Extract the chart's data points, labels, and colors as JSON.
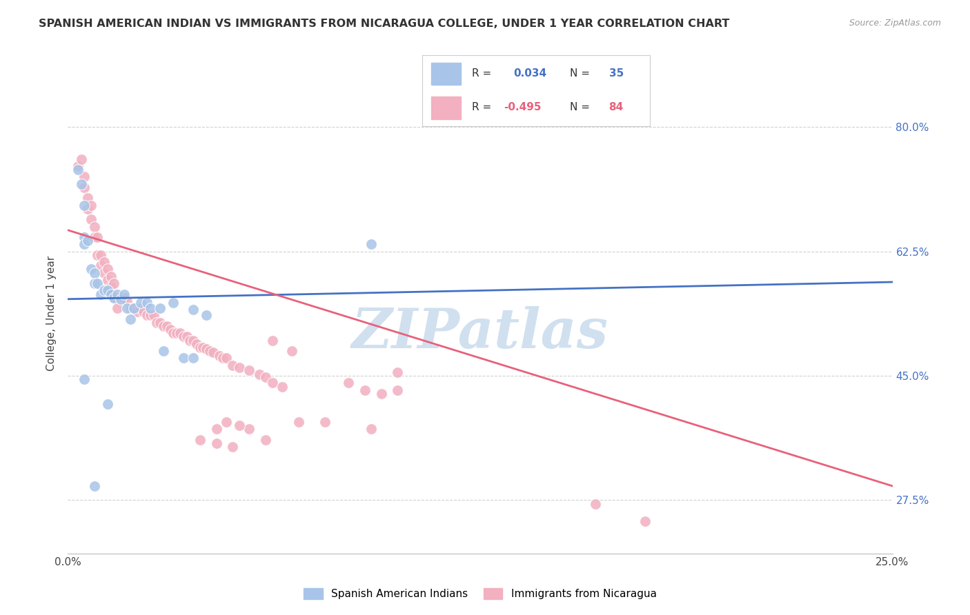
{
  "title": "SPANISH AMERICAN INDIAN VS IMMIGRANTS FROM NICARAGUA COLLEGE, UNDER 1 YEAR CORRELATION CHART",
  "source": "Source: ZipAtlas.com",
  "ylabel": "College, Under 1 year",
  "ytick_labels": [
    "27.5%",
    "45.0%",
    "62.5%",
    "80.0%"
  ],
  "ytick_values": [
    0.275,
    0.45,
    0.625,
    0.8
  ],
  "xlim": [
    0.0,
    0.25
  ],
  "ylim": [
    0.2,
    0.875
  ],
  "color_blue": "#a8c4e8",
  "color_pink": "#f2b0c0",
  "line_blue": "#4472c4",
  "line_pink": "#e8607a",
  "watermark_color": "#d0e0ef",
  "background_color": "#ffffff",
  "grid_color": "#cccccc",
  "blue_line_x": [
    0.0,
    0.25
  ],
  "blue_line_y": [
    0.558,
    0.582
  ],
  "pink_line_x": [
    0.0,
    0.25
  ],
  "pink_line_y": [
    0.655,
    0.295
  ],
  "blue_points": [
    [
      0.003,
      0.74
    ],
    [
      0.004,
      0.72
    ],
    [
      0.005,
      0.69
    ],
    [
      0.005,
      0.645
    ],
    [
      0.005,
      0.635
    ],
    [
      0.006,
      0.64
    ],
    [
      0.007,
      0.6
    ],
    [
      0.008,
      0.595
    ],
    [
      0.008,
      0.58
    ],
    [
      0.009,
      0.58
    ],
    [
      0.01,
      0.565
    ],
    [
      0.011,
      0.57
    ],
    [
      0.012,
      0.57
    ],
    [
      0.013,
      0.565
    ],
    [
      0.014,
      0.56
    ],
    [
      0.015,
      0.565
    ],
    [
      0.016,
      0.558
    ],
    [
      0.017,
      0.565
    ],
    [
      0.018,
      0.545
    ],
    [
      0.019,
      0.53
    ],
    [
      0.02,
      0.545
    ],
    [
      0.022,
      0.553
    ],
    [
      0.024,
      0.553
    ],
    [
      0.025,
      0.545
    ],
    [
      0.028,
      0.545
    ],
    [
      0.029,
      0.485
    ],
    [
      0.032,
      0.553
    ],
    [
      0.035,
      0.475
    ],
    [
      0.038,
      0.543
    ],
    [
      0.038,
      0.475
    ],
    [
      0.042,
      0.535
    ],
    [
      0.005,
      0.445
    ],
    [
      0.092,
      0.635
    ],
    [
      0.012,
      0.41
    ],
    [
      0.008,
      0.295
    ]
  ],
  "pink_points": [
    [
      0.003,
      0.745
    ],
    [
      0.004,
      0.755
    ],
    [
      0.005,
      0.73
    ],
    [
      0.005,
      0.715
    ],
    [
      0.006,
      0.7
    ],
    [
      0.006,
      0.685
    ],
    [
      0.007,
      0.69
    ],
    [
      0.007,
      0.67
    ],
    [
      0.008,
      0.66
    ],
    [
      0.008,
      0.645
    ],
    [
      0.009,
      0.645
    ],
    [
      0.009,
      0.62
    ],
    [
      0.01,
      0.62
    ],
    [
      0.01,
      0.605
    ],
    [
      0.011,
      0.61
    ],
    [
      0.011,
      0.595
    ],
    [
      0.012,
      0.6
    ],
    [
      0.012,
      0.585
    ],
    [
      0.013,
      0.59
    ],
    [
      0.013,
      0.575
    ],
    [
      0.014,
      0.58
    ],
    [
      0.014,
      0.56
    ],
    [
      0.015,
      0.56
    ],
    [
      0.015,
      0.545
    ],
    [
      0.016,
      0.56
    ],
    [
      0.017,
      0.56
    ],
    [
      0.018,
      0.555
    ],
    [
      0.019,
      0.545
    ],
    [
      0.02,
      0.545
    ],
    [
      0.021,
      0.54
    ],
    [
      0.022,
      0.545
    ],
    [
      0.023,
      0.54
    ],
    [
      0.024,
      0.535
    ],
    [
      0.025,
      0.535
    ],
    [
      0.026,
      0.535
    ],
    [
      0.027,
      0.525
    ],
    [
      0.028,
      0.525
    ],
    [
      0.029,
      0.52
    ],
    [
      0.03,
      0.52
    ],
    [
      0.031,
      0.515
    ],
    [
      0.032,
      0.51
    ],
    [
      0.033,
      0.51
    ],
    [
      0.034,
      0.51
    ],
    [
      0.035,
      0.505
    ],
    [
      0.036,
      0.505
    ],
    [
      0.037,
      0.5
    ],
    [
      0.038,
      0.5
    ],
    [
      0.039,
      0.495
    ],
    [
      0.04,
      0.49
    ],
    [
      0.041,
      0.49
    ],
    [
      0.042,
      0.488
    ],
    [
      0.043,
      0.485
    ],
    [
      0.044,
      0.483
    ],
    [
      0.046,
      0.478
    ],
    [
      0.047,
      0.475
    ],
    [
      0.048,
      0.475
    ],
    [
      0.05,
      0.465
    ],
    [
      0.052,
      0.462
    ],
    [
      0.055,
      0.458
    ],
    [
      0.058,
      0.452
    ],
    [
      0.06,
      0.448
    ],
    [
      0.062,
      0.44
    ],
    [
      0.065,
      0.435
    ],
    [
      0.07,
      0.385
    ],
    [
      0.078,
      0.385
    ],
    [
      0.085,
      0.44
    ],
    [
      0.09,
      0.43
    ],
    [
      0.095,
      0.425
    ],
    [
      0.1,
      0.455
    ],
    [
      0.04,
      0.36
    ],
    [
      0.045,
      0.375
    ],
    [
      0.055,
      0.375
    ],
    [
      0.06,
      0.36
    ],
    [
      0.045,
      0.355
    ],
    [
      0.05,
      0.35
    ],
    [
      0.048,
      0.385
    ],
    [
      0.052,
      0.38
    ],
    [
      0.062,
      0.5
    ],
    [
      0.068,
      0.485
    ],
    [
      0.092,
      0.375
    ],
    [
      0.1,
      0.43
    ],
    [
      0.175,
      0.245
    ],
    [
      0.16,
      0.27
    ]
  ],
  "title_fontsize": 11.5,
  "tick_fontsize": 11,
  "ylabel_fontsize": 11
}
